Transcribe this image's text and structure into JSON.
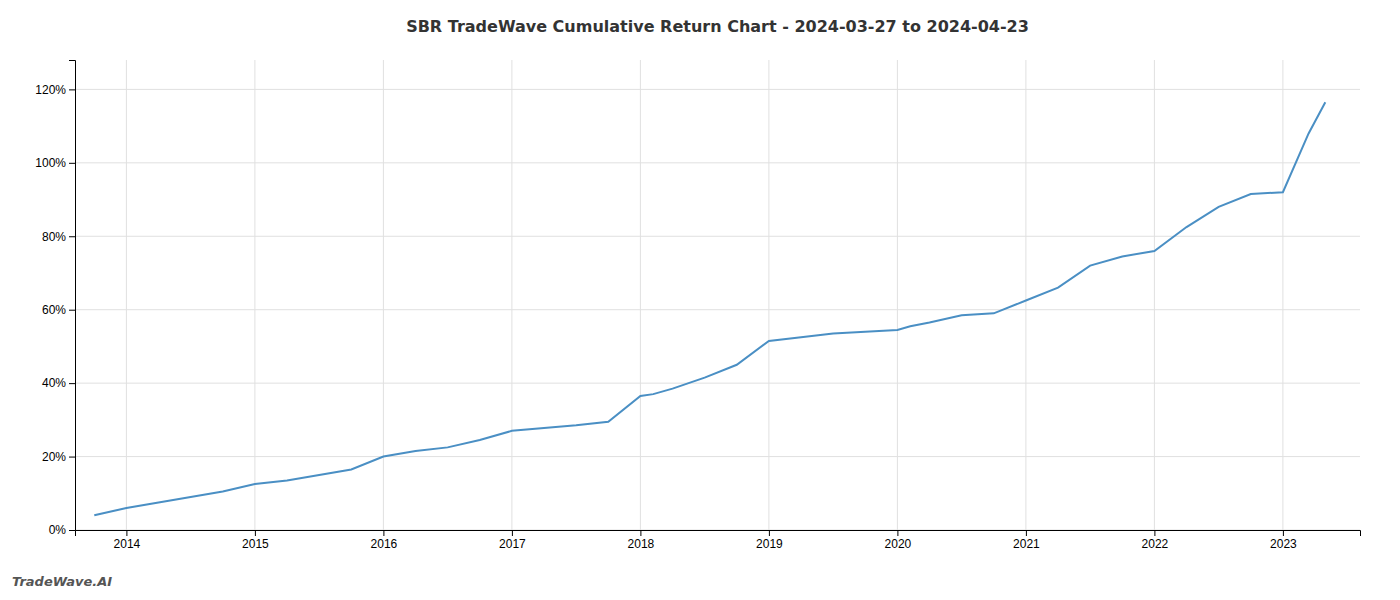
{
  "chart_data": {
    "type": "line",
    "title": "SBR TradeWave Cumulative Return Chart - 2024-03-27 to 2024-04-23",
    "annotations": [
      "TradeWave.AI"
    ],
    "x": [
      2013.75,
      2014.0,
      2014.25,
      2014.75,
      2015.0,
      2015.25,
      2015.75,
      2016.0,
      2016.25,
      2016.5,
      2016.75,
      2017.0,
      2017.25,
      2017.5,
      2017.75,
      2018.0,
      2018.1,
      2018.25,
      2018.5,
      2018.75,
      2019.0,
      2019.25,
      2019.5,
      2019.75,
      2020.0,
      2020.1,
      2020.25,
      2020.5,
      2020.75,
      2021.0,
      2021.25,
      2021.5,
      2021.75,
      2022.0,
      2022.25,
      2022.5,
      2022.75,
      2023.0,
      2023.2,
      2023.33
    ],
    "values": [
      0.04,
      0.06,
      0.075,
      0.105,
      0.125,
      0.135,
      0.165,
      0.2,
      0.215,
      0.225,
      0.245,
      0.27,
      0.278,
      0.285,
      0.295,
      0.365,
      0.37,
      0.385,
      0.415,
      0.45,
      0.515,
      0.525,
      0.535,
      0.54,
      0.545,
      0.555,
      0.565,
      0.585,
      0.59,
      0.625,
      0.66,
      0.72,
      0.745,
      0.76,
      0.825,
      0.88,
      0.915,
      0.92,
      1.08,
      1.165
    ],
    "color": "#4a8fc4",
    "xlim": [
      2013.6,
      2023.6
    ],
    "xticks": [
      2014,
      2015,
      2016,
      2017,
      2018,
      2019,
      2020,
      2021,
      2022,
      2023
    ],
    "ylim": [
      0.0,
      1.28
    ],
    "yticks": [
      {
        "value": 0.0,
        "label": "0%"
      },
      {
        "value": 0.2,
        "label": "20%"
      },
      {
        "value": 0.4,
        "label": "40%"
      },
      {
        "value": 0.6,
        "label": "60%"
      },
      {
        "value": 0.8,
        "label": "80%"
      },
      {
        "value": 1.0,
        "label": "100%"
      },
      {
        "value": 1.2,
        "label": "120%"
      }
    ],
    "grid": true
  }
}
